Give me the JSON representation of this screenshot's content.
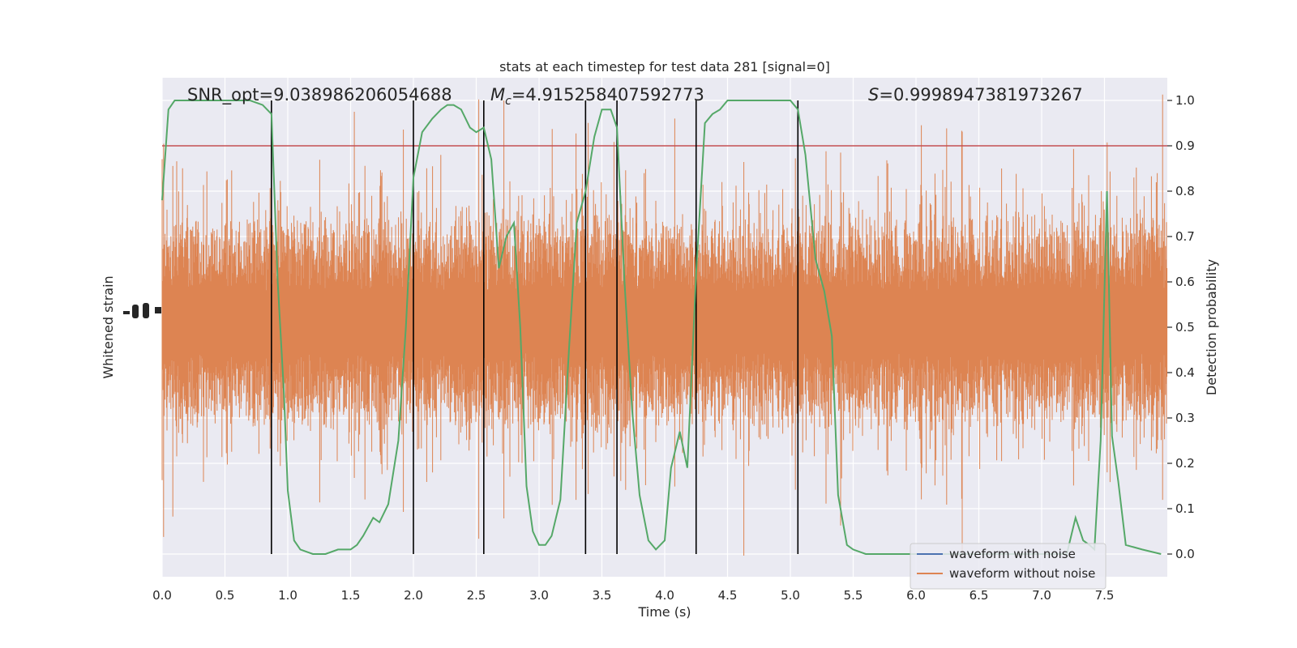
{
  "chart_data": {
    "type": "line",
    "title": "stats at each timestep for test data 281 [signal=0]",
    "xlabel": "Time (s)",
    "ylabel_left": "Whitened strain",
    "ylabel_right": "Detection probability",
    "xlim": [
      0.0,
      8.0
    ],
    "ylim_right": [
      -0.05,
      1.05
    ],
    "x_ticks": [
      0.0,
      0.5,
      1.0,
      1.5,
      2.0,
      2.5,
      3.0,
      3.5,
      4.0,
      4.5,
      5.0,
      5.5,
      6.0,
      6.5,
      7.0,
      7.5
    ],
    "x_tick_labels": [
      "0.0",
      "0.5",
      "1.0",
      "1.5",
      "2.0",
      "2.5",
      "3.0",
      "3.5",
      "4.0",
      "4.5",
      "5.0",
      "5.5",
      "6.0",
      "6.5",
      "7.0",
      "7.5"
    ],
    "y_right_ticks": [
      0.0,
      0.1,
      0.2,
      0.3,
      0.4,
      0.5,
      0.6,
      0.7,
      0.8,
      0.9,
      1.0
    ],
    "y_right_tick_labels": [
      "0.0",
      "0.1",
      "0.2",
      "0.3",
      "0.4",
      "0.5",
      "0.6",
      "0.7",
      "0.8",
      "0.9",
      "1.0"
    ],
    "grid": true,
    "annotations": {
      "snr": "SNR_opt=9.038986206054688",
      "mc_symbol": "M",
      "mc_subscript": "c",
      "mc_value": "=4.915258407592773",
      "s_symbol": "S",
      "s_value": "=0.9998947381973267"
    },
    "threshold": 0.9,
    "vertical_lines": [
      0.87,
      2.0,
      2.56,
      3.37,
      3.62,
      4.25,
      5.06
    ],
    "legend": {
      "position": "lower-right",
      "entries": [
        {
          "label": "waveform with noise",
          "color": "#4c72b0"
        },
        {
          "label": "waveform without noise",
          "color": "#dd8452"
        }
      ]
    },
    "series": [
      {
        "color": "#55a868",
        "x": [
          0.0,
          0.05,
          0.1,
          0.15,
          0.2,
          0.3,
          0.4,
          0.5,
          0.6,
          0.7,
          0.8,
          0.87,
          0.92,
          0.97,
          1.0,
          1.05,
          1.1,
          1.2,
          1.3,
          1.4,
          1.5,
          1.55,
          1.6,
          1.68,
          1.73,
          1.8,
          1.88,
          1.94,
          2.0,
          2.07,
          2.15,
          2.22,
          2.27,
          2.32,
          2.38,
          2.45,
          2.5,
          2.56,
          2.62,
          2.68,
          2.74,
          2.8,
          2.85,
          2.9,
          2.95,
          3.0,
          3.05,
          3.1,
          3.17,
          3.24,
          3.3,
          3.37,
          3.44,
          3.5,
          3.57,
          3.62,
          3.68,
          3.74,
          3.8,
          3.87,
          3.93,
          4.0,
          4.05,
          4.12,
          4.18,
          4.25,
          4.32,
          4.38,
          4.44,
          4.5,
          4.56,
          4.65,
          4.8,
          5.0,
          5.06,
          5.12,
          5.2,
          5.27,
          5.33,
          5.38,
          5.45,
          5.5,
          5.6,
          5.8,
          6.0,
          6.5,
          7.0,
          7.2,
          7.27,
          7.33,
          7.38,
          7.42,
          7.47,
          7.52,
          7.56,
          7.61,
          7.67,
          7.8,
          7.95
        ],
        "values": [
          0.78,
          0.98,
          1.0,
          1.0,
          1.0,
          1.0,
          1.0,
          1.0,
          1.0,
          1.0,
          0.99,
          0.97,
          0.6,
          0.35,
          0.14,
          0.03,
          0.01,
          0.0,
          0.0,
          0.01,
          0.01,
          0.02,
          0.04,
          0.08,
          0.07,
          0.11,
          0.25,
          0.5,
          0.83,
          0.93,
          0.96,
          0.98,
          0.99,
          0.99,
          0.98,
          0.94,
          0.93,
          0.94,
          0.87,
          0.63,
          0.7,
          0.73,
          0.5,
          0.15,
          0.05,
          0.02,
          0.02,
          0.04,
          0.12,
          0.46,
          0.73,
          0.8,
          0.92,
          0.98,
          0.98,
          0.94,
          0.6,
          0.32,
          0.13,
          0.03,
          0.01,
          0.03,
          0.19,
          0.27,
          0.19,
          0.62,
          0.95,
          0.97,
          0.98,
          1.0,
          1.0,
          1.0,
          1.0,
          1.0,
          0.98,
          0.88,
          0.65,
          0.58,
          0.48,
          0.13,
          0.02,
          0.01,
          0.0,
          0.0,
          0.0,
          0.0,
          0.0,
          0.0,
          0.08,
          0.03,
          0.02,
          0.01,
          0.25,
          0.8,
          0.26,
          0.16,
          0.02,
          0.01,
          0.0
        ]
      }
    ]
  }
}
